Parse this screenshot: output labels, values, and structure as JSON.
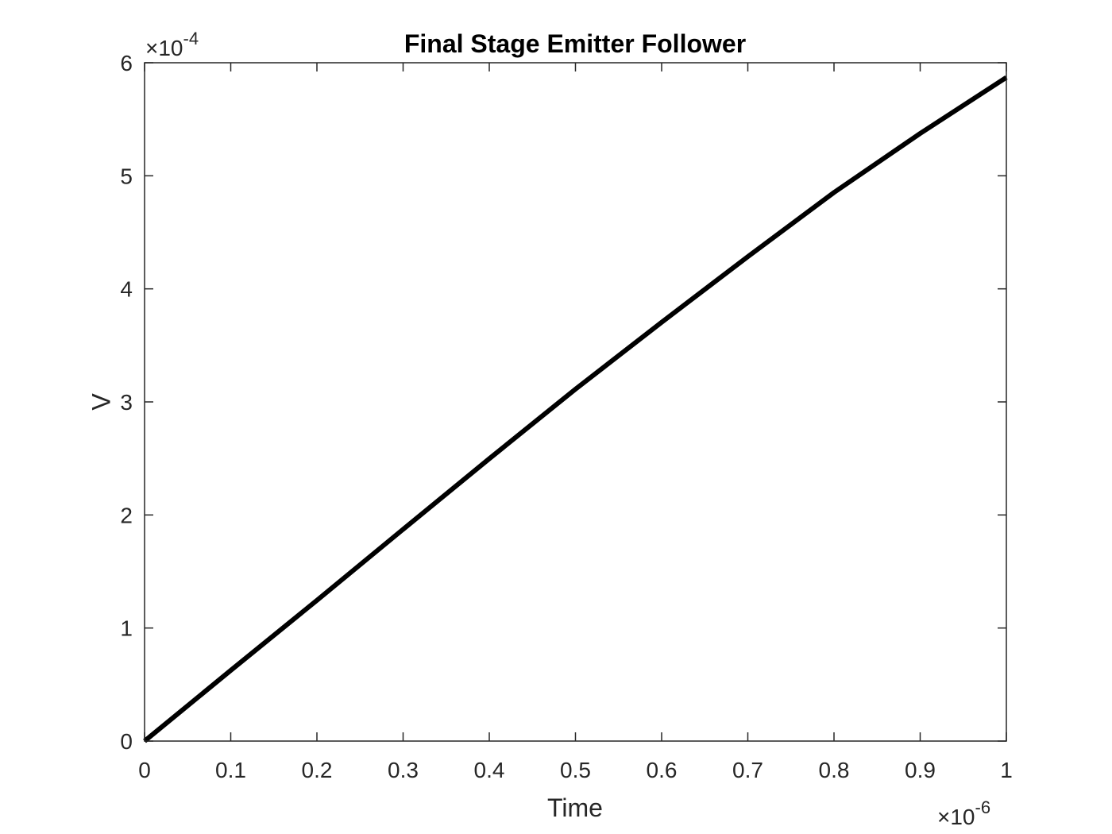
{
  "chart_data": {
    "type": "line",
    "title": "Final Stage Emitter Follower",
    "xlabel": "Time",
    "ylabel": "V",
    "x_multiplier": "10",
    "x_exponent": "-6",
    "y_multiplier": "10",
    "y_exponent": "-4",
    "times_symbol": "×",
    "xlim": [
      0,
      1e-06
    ],
    "ylim": [
      0,
      0.0006
    ],
    "x_ticks": [
      0,
      0.1,
      0.2,
      0.3,
      0.4,
      0.5,
      0.6,
      0.7,
      0.8,
      0.9,
      1
    ],
    "x_tick_labels": [
      "0",
      "0.1",
      "0.2",
      "0.3",
      "0.4",
      "0.5",
      "0.6",
      "0.7",
      "0.8",
      "0.9",
      "1"
    ],
    "y_ticks": [
      0,
      1,
      2,
      3,
      4,
      5,
      6
    ],
    "y_tick_labels": [
      "0",
      "1",
      "2",
      "3",
      "4",
      "5",
      "6"
    ],
    "grid": false,
    "series": [
      {
        "color": "#000000",
        "x": [
          0,
          1e-07,
          2e-07,
          3e-07,
          4e-07,
          5e-07,
          6e-07,
          7e-07,
          8e-07,
          9e-07,
          1e-06
        ],
        "y": [
          0,
          6.25e-05,
          0.0001245,
          0.0001873,
          0.0002498,
          0.0003113,
          0.0003705,
          0.0004285,
          0.0004853,
          0.0005375,
          0.000587
        ]
      }
    ]
  }
}
